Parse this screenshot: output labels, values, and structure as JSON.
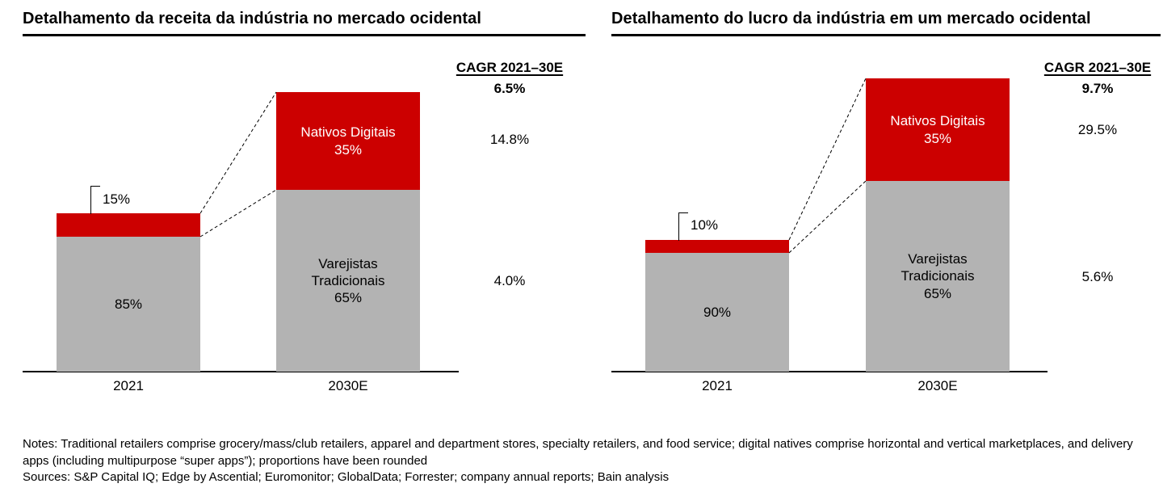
{
  "page": {
    "notes": "Notes: Traditional retailers comprise grocery/mass/club retailers, apparel and department stores, specialty retailers, and food service; digital natives comprise horizontal and vertical marketplaces, and delivery apps (including multipurpose “super apps”); proportions have been rounded",
    "sources": "Sources: S&P Capital IQ; Edge by Ascential; Euromonitor; GlobalData; Forrester; company annual reports; Bain analysis"
  },
  "colors": {
    "digital_red": "#cc0000",
    "traditional_gray": "#b3b3b3",
    "text": "#000000"
  },
  "chart_data": [
    {
      "type": "bar",
      "stacked": true,
      "title": "Detalhamento da receita da indústria no mercado ocidental",
      "categories": [
        "2021",
        "2030E"
      ],
      "unit": "%",
      "legend": "none",
      "series": [
        {
          "name": "Nativos Digitais",
          "role": "digital",
          "color": "#cc0000",
          "values": [
            15,
            35
          ],
          "labels": [
            "15%",
            "35%"
          ]
        },
        {
          "name": "Varejistas Tradicionais",
          "role": "traditional",
          "color": "#b3b3b3",
          "values": [
            85,
            65
          ],
          "labels": [
            "85%",
            "65%"
          ]
        }
      ],
      "cagr": {
        "header": "CAGR 2021–30E",
        "total": "6.5%",
        "nativos_digitais": "14.8%",
        "varejistas_tradicionais": "4.0%"
      }
    },
    {
      "type": "bar",
      "stacked": true,
      "title": "Detalhamento do lucro da indústria em um mercado ocidental",
      "categories": [
        "2021",
        "2030E"
      ],
      "unit": "%",
      "legend": "none",
      "series": [
        {
          "name": "Nativos Digitais",
          "role": "digital",
          "color": "#cc0000",
          "values": [
            10,
            35
          ],
          "labels": [
            "10%",
            "35%"
          ]
        },
        {
          "name": "Varejistas Tradicionais",
          "role": "traditional",
          "color": "#b3b3b3",
          "values": [
            90,
            65
          ],
          "labels": [
            "90%",
            "65%"
          ]
        }
      ],
      "cagr": {
        "header": "CAGR 2021–30E",
        "total": "9.7%",
        "nativos_digitais": "29.5%",
        "varejistas_tradicionais": "5.6%"
      }
    }
  ]
}
